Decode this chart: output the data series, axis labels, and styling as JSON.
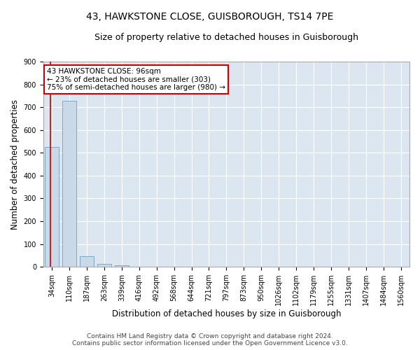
{
  "title": "43, HAWKSTONE CLOSE, GUISBOROUGH, TS14 7PE",
  "subtitle": "Size of property relative to detached houses in Guisborough",
  "xlabel": "Distribution of detached houses by size in Guisborough",
  "ylabel": "Number of detached properties",
  "categories": [
    "34sqm",
    "110sqm",
    "187sqm",
    "263sqm",
    "339sqm",
    "416sqm",
    "492sqm",
    "568sqm",
    "644sqm",
    "721sqm",
    "797sqm",
    "873sqm",
    "950sqm",
    "1026sqm",
    "1102sqm",
    "1179sqm",
    "1255sqm",
    "1331sqm",
    "1407sqm",
    "1484sqm",
    "1560sqm"
  ],
  "values": [
    525,
    728,
    47,
    12,
    7,
    0,
    0,
    0,
    0,
    0,
    0,
    0,
    0,
    0,
    0,
    0,
    0,
    0,
    0,
    0,
    0
  ],
  "bar_color": "#c9d9e8",
  "bar_edge_color": "#7aaac8",
  "annotation_text": "43 HAWKSTONE CLOSE: 96sqm\n← 23% of detached houses are smaller (303)\n75% of semi-detached houses are larger (980) →",
  "annotation_box_color": "#ffffff",
  "annotation_box_edge": "#cc0000",
  "vline_color": "#cc0000",
  "ylim": [
    0,
    900
  ],
  "yticks": [
    0,
    100,
    200,
    300,
    400,
    500,
    600,
    700,
    800,
    900
  ],
  "footer_line1": "Contains HM Land Registry data © Crown copyright and database right 2024.",
  "footer_line2": "Contains public sector information licensed under the Open Government Licence v3.0.",
  "bg_color": "#ffffff",
  "plot_bg_color": "#dce6f0",
  "grid_color": "#ffffff",
  "title_fontsize": 10,
  "subtitle_fontsize": 9,
  "tick_fontsize": 7,
  "label_fontsize": 8.5,
  "footer_fontsize": 6.5
}
